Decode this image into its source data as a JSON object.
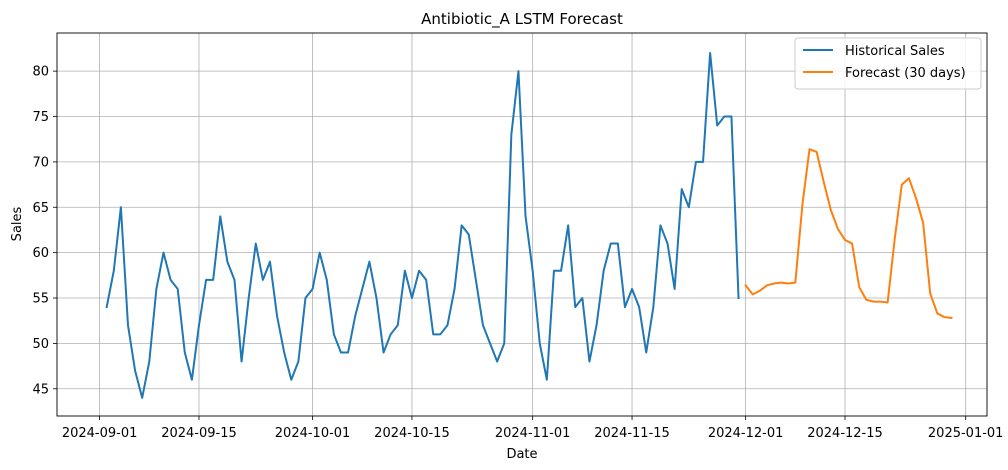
{
  "chart_data": {
    "type": "line",
    "title": "Antibiotic_A LSTM Forecast",
    "xlabel": "Date",
    "ylabel": "Sales",
    "xlim": [
      "2024-08-26",
      "2025-01-04"
    ],
    "ylim": [
      42.0,
      84.2
    ],
    "grid": true,
    "legend_position": "top-right",
    "x_ticks": [
      "2024-09-01",
      "2024-09-15",
      "2024-10-01",
      "2024-10-15",
      "2024-11-01",
      "2024-11-15",
      "2024-12-01",
      "2024-12-15",
      "2025-01-01"
    ],
    "y_ticks": [
      45,
      50,
      55,
      60,
      65,
      70,
      75,
      80
    ],
    "series": [
      {
        "name": "Historical Sales",
        "color": "#1f77b4",
        "start_date": "2024-09-02",
        "values": [
          54,
          58,
          65,
          52,
          47,
          44,
          48,
          56,
          60,
          57,
          56,
          49,
          46,
          52,
          57,
          57,
          64,
          59,
          57,
          48,
          55,
          61,
          57,
          59,
          53,
          49,
          46,
          48,
          55,
          56,
          60,
          57,
          51,
          49,
          49,
          53,
          56,
          59,
          55,
          49,
          51,
          52,
          58,
          55,
          58,
          57,
          51,
          51,
          52,
          56,
          63,
          62,
          57,
          52,
          50,
          48,
          50,
          73,
          80,
          64,
          58,
          50,
          46,
          58,
          58,
          63,
          54,
          55,
          48,
          52,
          58,
          61,
          61,
          54,
          56,
          54,
          49,
          54,
          63,
          61,
          56,
          67,
          65,
          70,
          70,
          82,
          74,
          75,
          75,
          55
        ]
      },
      {
        "name": "Forecast (30 days)",
        "color": "#ff7f0e",
        "start_date": "2024-12-01",
        "values": [
          56.4,
          55.4,
          55.8,
          56.4,
          56.6,
          56.7,
          56.6,
          56.7,
          65.3,
          71.4,
          71.1,
          67.8,
          64.7,
          62.6,
          61.4,
          61.0,
          56.2,
          54.8,
          54.6,
          54.6,
          54.5,
          61.5,
          67.5,
          68.2,
          66.0,
          63.3,
          55.5,
          53.3,
          52.9,
          52.8
        ]
      }
    ]
  }
}
